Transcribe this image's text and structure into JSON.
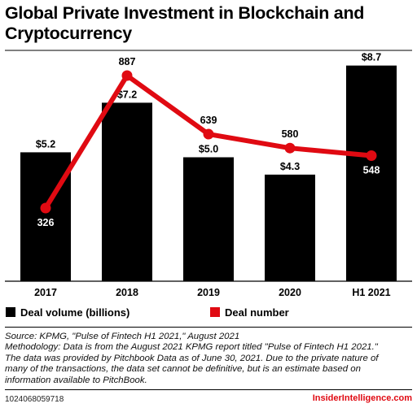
{
  "title_line1": "Global Private Investment in Blockchain and",
  "title_line2": "Cryptocurrency",
  "chart_data": {
    "type": "bar",
    "title": "Global Private Investment in Blockchain and Cryptocurrency",
    "categories": [
      "2017",
      "2018",
      "2019",
      "2020",
      "H1 2021"
    ],
    "series": [
      {
        "name": "Deal volume (billions)",
        "type": "bar",
        "values": [
          5.2,
          7.2,
          5.0,
          4.3,
          8.7
        ],
        "labels": [
          "$5.2",
          "$7.2",
          "$5.0",
          "$4.3",
          "$8.7"
        ],
        "color": "#000000"
      },
      {
        "name": "Deal number",
        "type": "line",
        "values": [
          326,
          887,
          639,
          580,
          548
        ],
        "labels": [
          "326",
          "887",
          "639",
          "580",
          "548"
        ],
        "color": "#e00a12"
      }
    ],
    "grid": false,
    "legend_position": "bottom"
  },
  "legend": {
    "bar_label": "Deal volume (billions)",
    "line_label": "Deal number"
  },
  "notes": {
    "line1": "Source: KPMG, \"Pulse of Fintech H1 2021,\" August 2021",
    "line2": "Methodology: Data is from the August 2021 KPMG report titled \"Pulse of Fintech H1 2021.\"",
    "line3": "The data was provided by Pitchbook Data as of June 30, 2021. Due to the private nature of",
    "line4": "many of the transactions, the data set cannot be definitive, but is an estimate based on",
    "line5": "information available to PitchBook."
  },
  "footer": {
    "chart_id": "1024068059718",
    "brand": "InsiderIntelligence.com"
  },
  "colors": {
    "bar": "#000000",
    "line": "#e00a12",
    "brand": "#e00a12"
  }
}
